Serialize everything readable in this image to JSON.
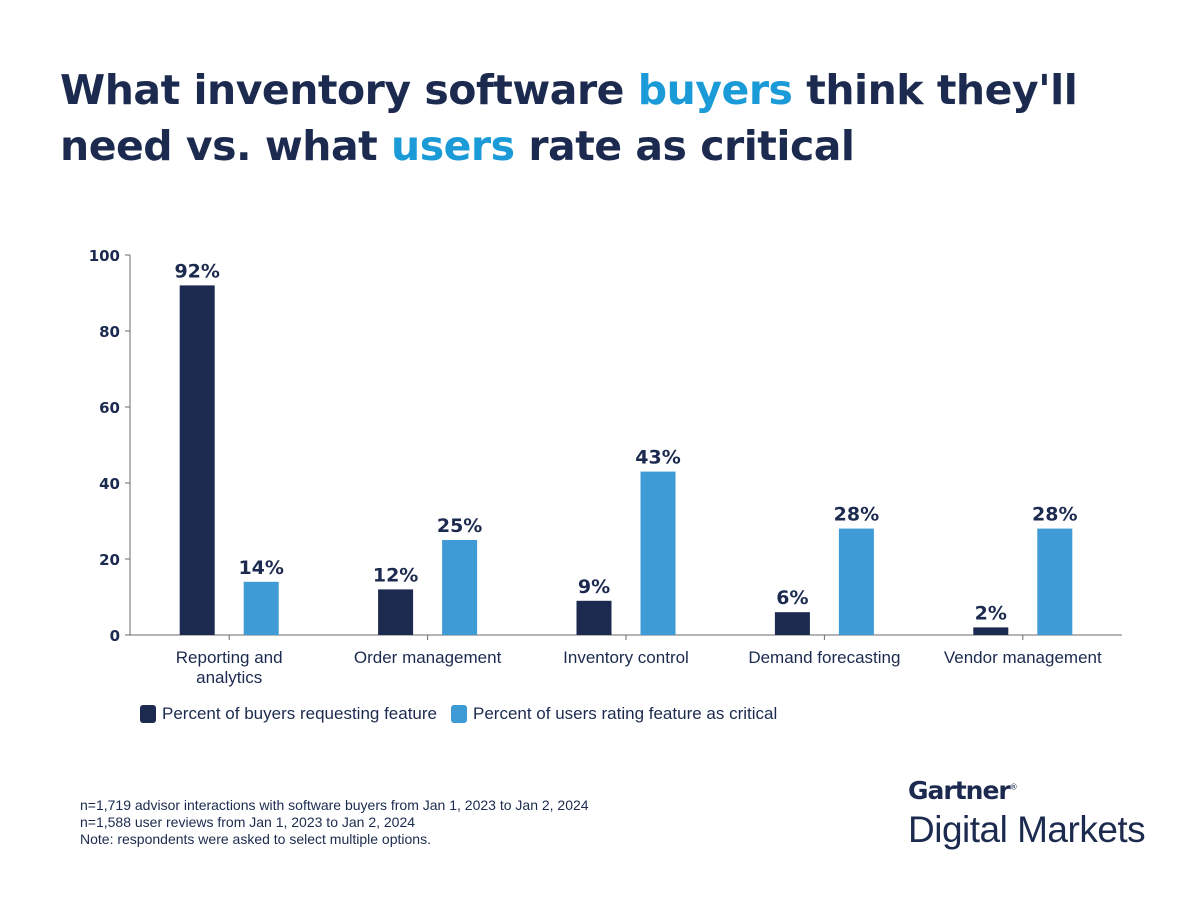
{
  "title": {
    "part1": "What inventory software ",
    "highlight1": "buyers",
    "part2": " think they'll need vs. what ",
    "highlight2": "users",
    "part3": " rate as critical"
  },
  "chart_data": {
    "type": "bar",
    "title": "What inventory software buyers think they'll need vs. what users rate as critical",
    "xlabel": "",
    "ylabel": "",
    "ylim": [
      0,
      100
    ],
    "yticks": [
      0,
      20,
      40,
      60,
      80,
      100
    ],
    "grid": false,
    "legend_position": "bottom-left",
    "categories": [
      [
        "Reporting and",
        "analytics"
      ],
      [
        "Order management"
      ],
      [
        "Inventory control"
      ],
      [
        "Demand forecasting"
      ],
      [
        "Vendor management"
      ]
    ],
    "series": [
      {
        "name": "Percent of buyers requesting feature",
        "color": "#1b2a4e",
        "values": [
          92,
          12,
          9,
          6,
          2
        ],
        "labels": [
          "92%",
          "12%",
          "9%",
          "6%",
          "2%"
        ]
      },
      {
        "name": "Percent of users rating feature as critical",
        "color": "#3f9bd6",
        "values": [
          14,
          25,
          43,
          28,
          28
        ],
        "labels": [
          "14%",
          "25%",
          "43%",
          "28%",
          "28%"
        ]
      }
    ]
  },
  "legend": [
    {
      "label": "Percent of buyers requesting feature",
      "color": "#1b2a4e"
    },
    {
      "label": "Percent of users rating feature as critical",
      "color": "#3f9bd6"
    }
  ],
  "notes": [
    "n=1,719 advisor interactions with software buyers from Jan 1, 2023 to Jan 2, 2024",
    "n=1,588 user reviews from Jan 1, 2023 to Jan 2, 2024",
    "Note: respondents were asked to select multiple options."
  ],
  "brand": {
    "name": "Gartner",
    "mark": "®",
    "sub": "Digital Markets"
  }
}
